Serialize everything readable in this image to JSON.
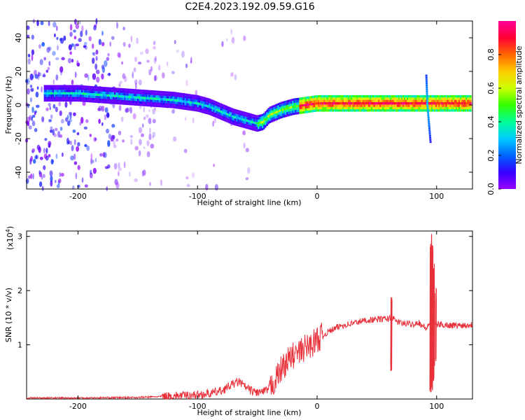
{
  "title": "C2E4.2023.192.09.59.G16",
  "chart_data": [
    {
      "type": "heatmap",
      "xlabel": "Height of straight line (km)",
      "ylabel": "Frequency (Hz)",
      "xlim": [
        -243,
        130
      ],
      "ylim": [
        -50,
        50
      ],
      "xticks": [
        -200,
        -100,
        0,
        100
      ],
      "yticks": [
        -40,
        -20,
        0,
        20,
        40
      ],
      "colorbar": {
        "label": "Normalized spectral amplitude",
        "range": [
          0,
          1
        ],
        "ticks": [
          "0.0",
          "0.2",
          "0.4",
          "0.6",
          "0.8"
        ],
        "colors": [
          "#9900ff",
          "#3300ff",
          "#0066ff",
          "#00ccff",
          "#00ff99",
          "#33ff00",
          "#ccff00",
          "#ffcc00",
          "#ff6600",
          "#ff0033",
          "#ff0099"
        ]
      },
      "ridge": {
        "x": [
          -223,
          -200,
          -180,
          -160,
          -140,
          -120,
          -100,
          -90,
          -80,
          -70,
          -60,
          -50,
          -45,
          -40,
          -30,
          -20,
          -10,
          0,
          20,
          50,
          80,
          88,
          92,
          100,
          130
        ],
        "y": [
          7,
          7,
          6,
          5,
          4,
          3,
          1,
          -1,
          -4,
          -7,
          -9,
          -11,
          -10,
          -6,
          -3,
          -1,
          0,
          1,
          1,
          1,
          1,
          1,
          1,
          1,
          1
        ]
      }
    },
    {
      "type": "line",
      "xlabel": "Height of straight line (km)",
      "ylabel": "SNR (10 * v/v)",
      "exponent": "(x10",
      "exponent_power": "4",
      "xlim": [
        -243,
        130
      ],
      "ylim": [
        0,
        3.1
      ],
      "xticks": [
        -200,
        -100,
        0,
        100
      ],
      "yticks": [
        1,
        2,
        3
      ],
      "color": "#e8303a",
      "series": [
        {
          "x": [
            -243,
            -200,
            -150,
            -125,
            -100,
            -90,
            -80,
            -70,
            -65,
            -60,
            -55,
            -50,
            -45,
            -40,
            -35,
            -30,
            -25,
            -20,
            -15,
            -10,
            -5,
            0,
            10,
            20,
            30,
            40,
            50,
            60,
            62,
            65,
            70,
            80,
            85,
            88,
            92,
            95,
            98,
            100,
            105,
            110,
            120,
            130
          ],
          "y": [
            0.02,
            0.02,
            0.03,
            0.05,
            0.08,
            0.1,
            0.15,
            0.28,
            0.32,
            0.22,
            0.15,
            0.12,
            0.13,
            0.18,
            0.35,
            0.55,
            0.7,
            0.8,
            0.85,
            0.95,
            1.0,
            1.1,
            1.25,
            1.35,
            1.4,
            1.45,
            1.47,
            1.48,
            1.52,
            1.45,
            1.4,
            1.38,
            1.42,
            1.35,
            1.3,
            1.45,
            1.4,
            1.38,
            1.37,
            1.36,
            1.36,
            1.37
          ]
        }
      ],
      "spikes": [
        {
          "x": 62,
          "ymin": 0.5,
          "ymax": 1.92
        },
        {
          "x": 95,
          "ymin": 0.1,
          "ymax": 3.05
        },
        {
          "x": 96,
          "ymin": 0.15,
          "ymax": 2.9
        },
        {
          "x": 97.5,
          "ymin": 0.3,
          "ymax": 2.5
        },
        {
          "x": 99,
          "ymin": 0.6,
          "ymax": 2.1
        }
      ]
    }
  ]
}
